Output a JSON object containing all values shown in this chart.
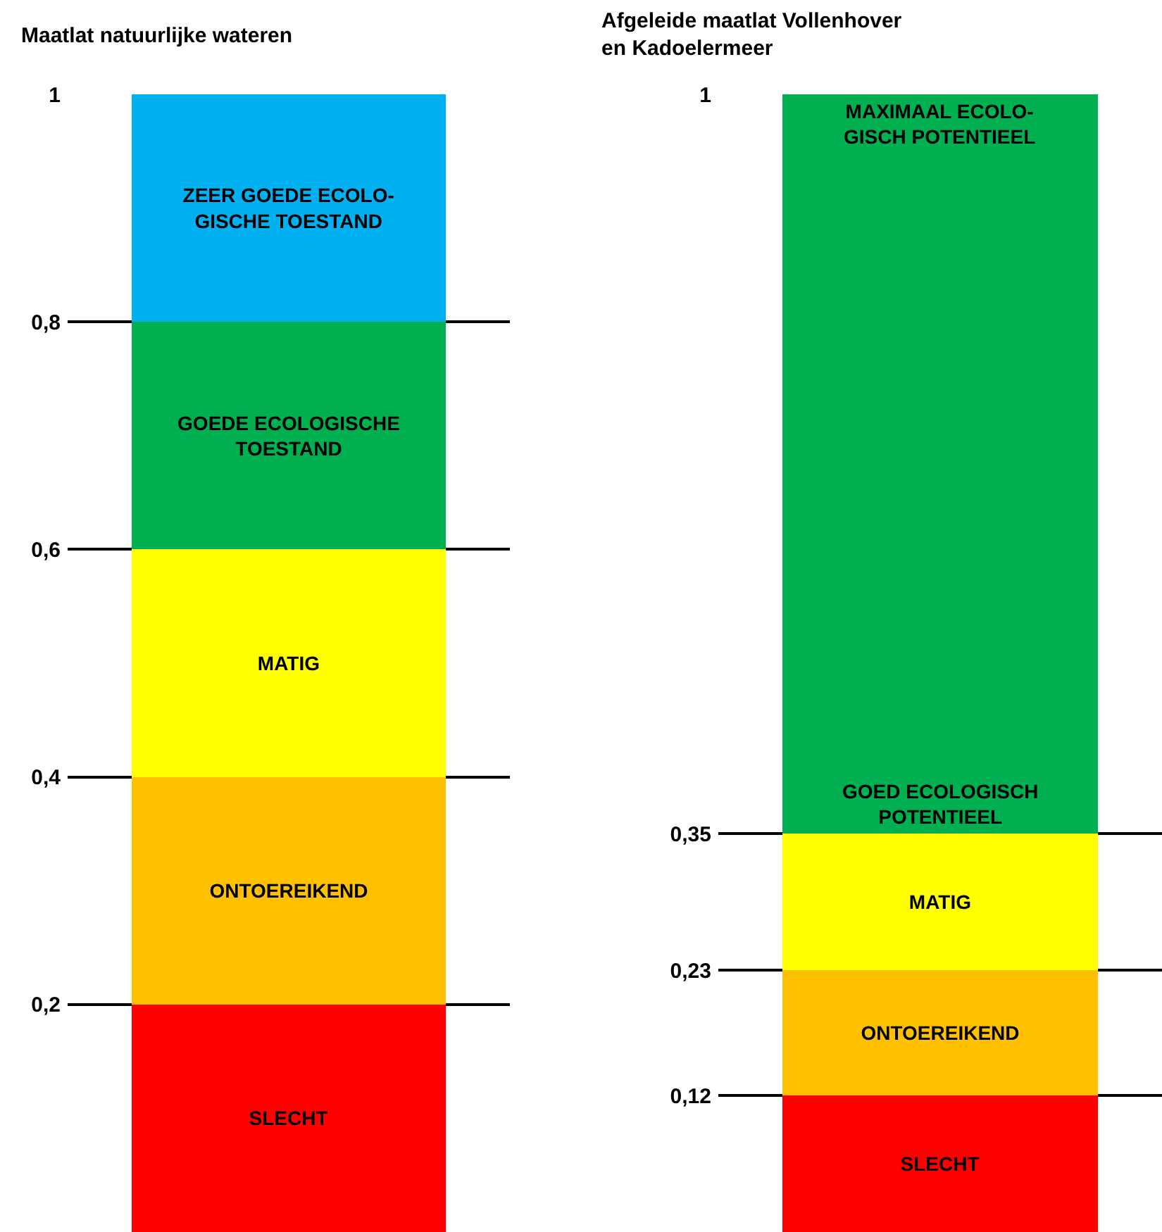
{
  "chart_data": [
    {
      "type": "bar",
      "title": "Maatlat natuurlijke wateren",
      "stacked": true,
      "categories": [
        null
      ],
      "legend": false,
      "grid": "y",
      "tick_labels": "y",
      "ylim": [
        0,
        1
      ],
      "yticks": [
        {
          "value": 0.2,
          "label": "0,2"
        },
        {
          "value": 0.4,
          "label": "0,4"
        },
        {
          "value": 0.6,
          "label": "0,6"
        },
        {
          "value": 0.8,
          "label": "0,8"
        },
        1
      ],
      "series": [
        {
          "name": "SLECHT",
          "color": "#ff0000",
          "values": [
            0.2
          ]
        },
        {
          "name": "ONTOEREIKEND",
          "color": "#ffc000",
          "values": [
            0.2
          ]
        },
        {
          "name": "MATIG",
          "color": "#ffff00",
          "values": [
            0.2
          ]
        },
        {
          "name": "GOEDE ECOLOGISCHE\nTOESTAND",
          "color": "#00b050",
          "values": [
            0.2
          ]
        },
        {
          "name": "ZEER GOEDE ECOLO-\nGISCHE TOESTAND",
          "color": "#00b0f0",
          "values": [
            0.2
          ]
        }
      ]
    },
    {
      "type": "bar",
      "title": "Afgeleide maatlat Vollenhover\nen Kadoelermeer",
      "stacked": true,
      "categories": [
        null
      ],
      "legend": false,
      "grid": "y",
      "tick_labels": "y",
      "ylim": [
        0,
        1
      ],
      "yticks": [
        {
          "value": 0.12,
          "label": "0,12"
        },
        {
          "value": 0.23,
          "label": "0,23"
        },
        {
          "value": 0.35,
          "label": "0,35"
        },
        1
      ],
      "series": [
        {
          "name": "SLECHT",
          "color": "#ff0000",
          "values": [
            0.12
          ]
        },
        {
          "name": "ONTOEREIKEND",
          "color": "#ffc000",
          "values": [
            0.11
          ]
        },
        {
          "name": "MATIG",
          "color": "#ffff00",
          "values": [
            0.12
          ]
        },
        {
          "color": "#00b050",
          "values": [
            0.65
          ]
        }
      ],
      "annotations": [
        "MAXIMAAL ECOLO-\nGISCH POTENTIEEL",
        "GOED ECOLOGISCH\nPOTENTIEEL"
      ]
    }
  ]
}
